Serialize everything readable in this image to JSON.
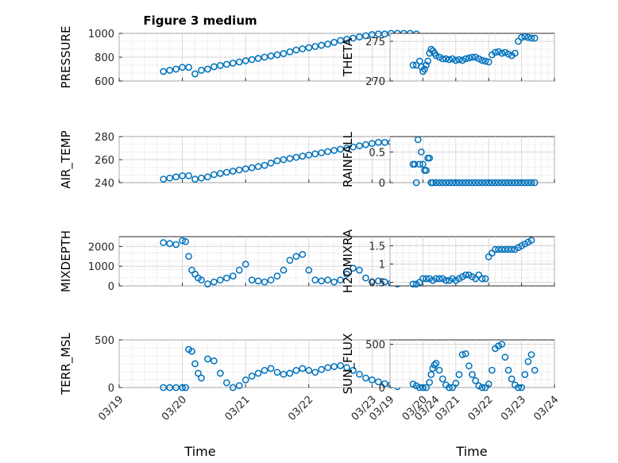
{
  "figure": {
    "title": "Figure 3 medium",
    "xlabel": "Time"
  },
  "chart_data": [
    {
      "type": "scatter",
      "id": "pressure",
      "ylabel": "PRESSURE",
      "xlim": [
        0,
        5
      ],
      "ylim": [
        600,
        1000
      ],
      "yticks": [
        600,
        800,
        1000
      ],
      "grid": true,
      "x_tick_labels": [],
      "series": [
        {
          "x": [
            0.7,
            0.8,
            0.9,
            1.0,
            1.1,
            1.2,
            1.3,
            1.4,
            1.5,
            1.6,
            1.7,
            1.8,
            1.9,
            2.0,
            2.1,
            2.2,
            2.3,
            2.4,
            2.5,
            2.6,
            2.7,
            2.8,
            2.9,
            3.0,
            3.1,
            3.2,
            3.3,
            3.4,
            3.5,
            3.6,
            3.7,
            3.8,
            3.9,
            4.0,
            4.1,
            4.2,
            4.3,
            4.4,
            4.5,
            4.6,
            4.7
          ],
          "y": [
            680,
            690,
            700,
            715,
            715,
            660,
            690,
            700,
            720,
            730,
            740,
            750,
            760,
            770,
            780,
            790,
            800,
            810,
            820,
            830,
            845,
            860,
            870,
            880,
            890,
            900,
            910,
            925,
            940,
            950,
            960,
            970,
            980,
            990,
            995,
            995,
            1000,
            1000,
            1000,
            1000,
            995
          ]
        }
      ]
    },
    {
      "type": "scatter",
      "id": "theta",
      "ylabel": "THETA",
      "xlim": [
        0,
        5
      ],
      "ylim": [
        270,
        276
      ],
      "yticks": [
        270,
        275
      ],
      "grid": true,
      "x_tick_labels": [],
      "series": [
        {
          "x": [
            0.7,
            0.8,
            0.9,
            0.95,
            1.0,
            1.05,
            1.1,
            1.15,
            1.2,
            1.25,
            1.3,
            1.35,
            1.4,
            1.5,
            1.6,
            1.7,
            1.8,
            1.9,
            2.0,
            2.1,
            2.2,
            2.3,
            2.4,
            2.5,
            2.6,
            2.7,
            2.8,
            2.9,
            3.0,
            3.1,
            3.2,
            3.3,
            3.4,
            3.5,
            3.6,
            3.7,
            3.8,
            3.9,
            4.0,
            4.1,
            4.2,
            4.3,
            4.4
          ],
          "y": [
            272,
            272,
            272.5,
            271.8,
            271.2,
            271.5,
            272,
            272.5,
            273.5,
            274,
            273.8,
            273.5,
            273.2,
            273,
            272.8,
            272.8,
            272.7,
            272.8,
            272.6,
            272.7,
            272.6,
            272.8,
            272.9,
            273,
            273,
            272.8,
            272.6,
            272.5,
            272.4,
            273.3,
            273.6,
            273.7,
            273.5,
            273.6,
            273.4,
            273.2,
            273.5,
            275,
            275.5,
            275.6,
            275.5,
            275.4,
            275.4
          ]
        }
      ]
    },
    {
      "type": "scatter",
      "id": "air_temp",
      "ylabel": "AIR_TEMP",
      "xlim": [
        0,
        5
      ],
      "ylim": [
        240,
        280
      ],
      "yticks": [
        240,
        260,
        280
      ],
      "grid": true,
      "x_tick_labels": [],
      "series": [
        {
          "x": [
            0.7,
            0.8,
            0.9,
            1.0,
            1.1,
            1.2,
            1.3,
            1.4,
            1.5,
            1.6,
            1.7,
            1.8,
            1.9,
            2.0,
            2.1,
            2.2,
            2.3,
            2.4,
            2.5,
            2.6,
            2.7,
            2.8,
            2.9,
            3.0,
            3.1,
            3.2,
            3.3,
            3.4,
            3.5,
            3.6,
            3.7,
            3.8,
            3.9,
            4.0,
            4.1,
            4.2,
            4.3
          ],
          "y": [
            243,
            244,
            245,
            246,
            246,
            243,
            244,
            245,
            247,
            248,
            249,
            250,
            251,
            252,
            253,
            254,
            255,
            257,
            259,
            260,
            261,
            262,
            263,
            264,
            265,
            266,
            267,
            268,
            269,
            270,
            271,
            272,
            273,
            274,
            275,
            275,
            275
          ]
        }
      ]
    },
    {
      "type": "scatter",
      "id": "rainfall",
      "ylabel": "RAINFALL",
      "xlim": [
        0,
        5
      ],
      "ylim": [
        0,
        0.75
      ],
      "yticks": [
        0,
        0.5
      ],
      "grid": true,
      "x_tick_labels": [],
      "series": [
        {
          "x": [
            0.7,
            0.75,
            0.8,
            0.85,
            0.9,
            0.95,
            1.0,
            1.05,
            1.1,
            1.15,
            1.2,
            1.25,
            1.3,
            1.4,
            1.5,
            1.6,
            1.7,
            1.8,
            1.9,
            2.0,
            2.1,
            2.2,
            2.3,
            2.4,
            2.5,
            2.6,
            2.7,
            2.8,
            2.9,
            3.0,
            3.1,
            3.2,
            3.3,
            3.4,
            3.5,
            3.6,
            3.7,
            3.8,
            3.9,
            4.0,
            4.1,
            4.2,
            4.3,
            4.4
          ],
          "y": [
            0.3,
            0.3,
            0,
            0.7,
            0.3,
            0.5,
            0.3,
            0.2,
            0.2,
            0.4,
            0.4,
            0,
            0,
            0,
            0,
            0,
            0,
            0,
            0,
            0,
            0,
            0,
            0,
            0,
            0,
            0,
            0,
            0,
            0,
            0,
            0,
            0,
            0,
            0,
            0,
            0,
            0,
            0,
            0,
            0,
            0,
            0,
            0,
            0
          ]
        }
      ]
    },
    {
      "type": "scatter",
      "id": "mixdepth",
      "ylabel": "MIXDEPTH",
      "xlim": [
        0,
        5
      ],
      "ylim": [
        0,
        2500
      ],
      "yticks": [
        0,
        1000,
        2000
      ],
      "grid": true,
      "x_tick_labels": [],
      "series": [
        {
          "x": [
            0.7,
            0.8,
            0.9,
            1.0,
            1.05,
            1.1,
            1.15,
            1.2,
            1.25,
            1.3,
            1.4,
            1.5,
            1.6,
            1.7,
            1.8,
            1.9,
            2.0,
            2.1,
            2.2,
            2.3,
            2.4,
            2.5,
            2.6,
            2.7,
            2.8,
            2.9,
            3.0,
            3.1,
            3.2,
            3.3,
            3.4,
            3.5,
            3.6,
            3.7,
            3.8,
            3.9,
            4.0,
            4.1,
            4.2,
            4.3,
            4.4
          ],
          "y": [
            2200,
            2150,
            2100,
            2300,
            2250,
            1500,
            800,
            600,
            400,
            300,
            100,
            200,
            300,
            400,
            500,
            800,
            1100,
            300,
            250,
            200,
            300,
            500,
            800,
            1300,
            1500,
            1600,
            800,
            300,
            250,
            300,
            200,
            300,
            600,
            900,
            800,
            400,
            200,
            250,
            200,
            150,
            100
          ]
        }
      ]
    },
    {
      "type": "scatter",
      "id": "h2omixra",
      "ylabel": "H2OMIXRA",
      "xlim": [
        0,
        5
      ],
      "ylim": [
        0.4,
        1.75
      ],
      "yticks": [
        0.5,
        1,
        1.5
      ],
      "grid": true,
      "x_tick_labels": [],
      "series": [
        {
          "x": [
            0.7,
            0.8,
            0.9,
            1.0,
            1.1,
            1.2,
            1.3,
            1.4,
            1.5,
            1.6,
            1.7,
            1.8,
            1.9,
            2.0,
            2.1,
            2.2,
            2.3,
            2.4,
            2.5,
            2.6,
            2.7,
            2.8,
            2.9,
            3.0,
            3.1,
            3.2,
            3.3,
            3.4,
            3.5,
            3.6,
            3.7,
            3.8,
            3.9,
            4.0,
            4.1,
            4.2,
            4.3
          ],
          "y": [
            0.45,
            0.45,
            0.5,
            0.6,
            0.6,
            0.6,
            0.55,
            0.6,
            0.6,
            0.6,
            0.55,
            0.55,
            0.6,
            0.55,
            0.6,
            0.65,
            0.7,
            0.7,
            0.65,
            0.6,
            0.7,
            0.6,
            0.6,
            1.2,
            1.3,
            1.4,
            1.4,
            1.4,
            1.4,
            1.4,
            1.4,
            1.4,
            1.45,
            1.5,
            1.55,
            1.6,
            1.65
          ]
        }
      ]
    },
    {
      "type": "scatter",
      "id": "terr_msl",
      "ylabel": "TERR_MSL",
      "xlim": [
        0,
        5
      ],
      "ylim": [
        0,
        500
      ],
      "yticks": [
        0,
        500
      ],
      "grid": true,
      "x_tick_labels": [
        "03/19",
        "03/20",
        "03/21",
        "03/22",
        "03/23",
        "03/24"
      ],
      "series": [
        {
          "x": [
            0.7,
            0.8,
            0.9,
            1.0,
            1.05,
            1.1,
            1.15,
            1.2,
            1.25,
            1.3,
            1.4,
            1.5,
            1.6,
            1.7,
            1.8,
            1.9,
            2.0,
            2.1,
            2.2,
            2.3,
            2.4,
            2.5,
            2.6,
            2.7,
            2.8,
            2.9,
            3.0,
            3.1,
            3.2,
            3.3,
            3.4,
            3.5,
            3.6,
            3.7,
            3.8,
            3.9,
            4.0,
            4.1,
            4.2,
            4.3,
            4.4
          ],
          "y": [
            0,
            0,
            0,
            0,
            0,
            400,
            380,
            250,
            150,
            100,
            300,
            280,
            150,
            50,
            0,
            20,
            80,
            120,
            150,
            180,
            200,
            160,
            140,
            150,
            180,
            200,
            180,
            160,
            190,
            210,
            220,
            230,
            210,
            180,
            140,
            100,
            80,
            60,
            40,
            30,
            10
          ]
        }
      ]
    },
    {
      "type": "scatter",
      "id": "sun_flux",
      "ylabel": "SUN_FLUX",
      "xlim": [
        0,
        5
      ],
      "ylim": [
        0,
        550
      ],
      "yticks": [
        0,
        500
      ],
      "grid": true,
      "x_tick_labels": [
        "03/19",
        "03/20",
        "03/21",
        "03/22",
        "03/23",
        "03/24"
      ],
      "series": [
        {
          "x": [
            0.7,
            0.8,
            0.9,
            1.0,
            1.1,
            1.2,
            1.25,
            1.3,
            1.35,
            1.4,
            1.5,
            1.6,
            1.7,
            1.8,
            1.9,
            2.0,
            2.1,
            2.2,
            2.3,
            2.4,
            2.5,
            2.6,
            2.7,
            2.8,
            2.9,
            3.0,
            3.1,
            3.2,
            3.3,
            3.4,
            3.5,
            3.6,
            3.7,
            3.8,
            3.9,
            4.0,
            4.1,
            4.2,
            4.3,
            4.4
          ],
          "y": [
            40,
            20,
            0,
            0,
            0,
            60,
            150,
            220,
            260,
            280,
            200,
            100,
            30,
            0,
            0,
            50,
            150,
            380,
            390,
            250,
            150,
            80,
            20,
            0,
            0,
            40,
            200,
            450,
            480,
            500,
            350,
            200,
            100,
            30,
            0,
            0,
            150,
            300,
            380,
            200
          ]
        }
      ]
    }
  ]
}
